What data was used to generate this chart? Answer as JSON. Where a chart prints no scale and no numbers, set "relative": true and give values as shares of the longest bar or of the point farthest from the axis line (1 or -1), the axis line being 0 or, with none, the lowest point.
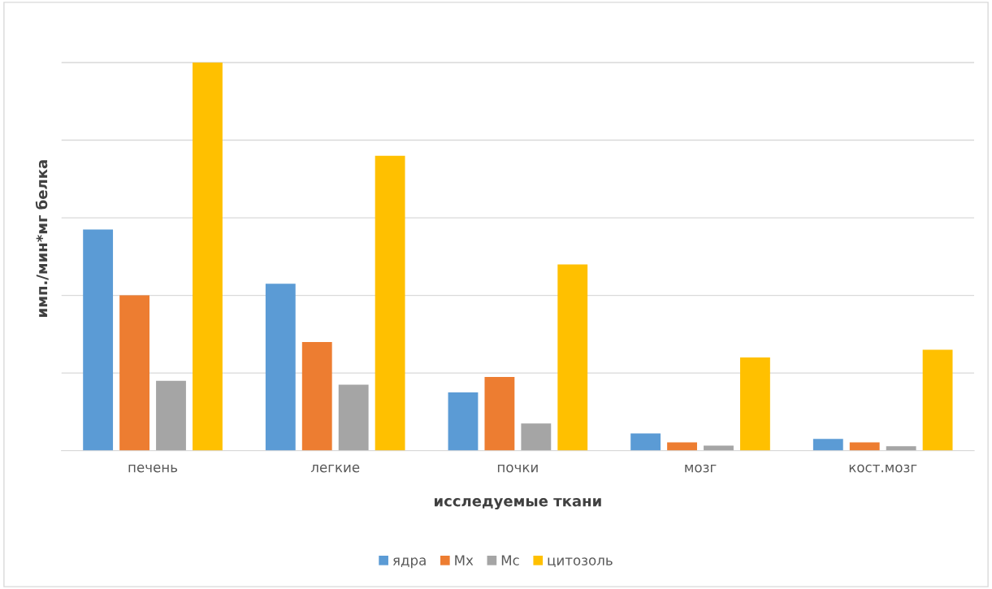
{
  "chart_data": {
    "type": "bar",
    "relative": true,
    "xlabel": "исследуемые ткани",
    "ylabel": "имп./мин*мг белка",
    "categories": [
      "печень",
      "легкие",
      "почки",
      "мозг",
      "кост.мозг"
    ],
    "series": [
      {
        "name": "ядра",
        "color": "#5b9bd5",
        "values": [
          0.57,
          0.43,
          0.15,
          0.044,
          0.03
        ]
      },
      {
        "name": "Мх",
        "color": "#ed7d31",
        "values": [
          0.4,
          0.28,
          0.19,
          0.021,
          0.021
        ]
      },
      {
        "name": "Мс",
        "color": "#a5a5a5",
        "values": [
          0.18,
          0.17,
          0.07,
          0.013,
          0.011
        ]
      },
      {
        "name": "цитозоль",
        "color": "#ffc000",
        "values": [
          1,
          0.76,
          0.48,
          0.24,
          0.26
        ]
      }
    ],
    "grid": "y",
    "legend": "bottom"
  }
}
